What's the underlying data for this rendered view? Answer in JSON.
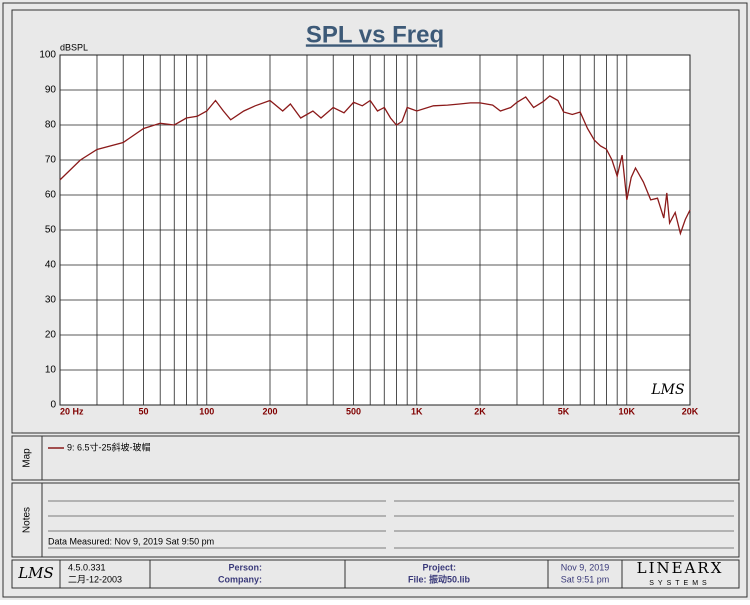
{
  "chart_data": {
    "type": "line",
    "title": "SPL vs Freq",
    "y_label": "dBSPL",
    "watermark": "LMS",
    "x_scale": "log",
    "grid": true,
    "xlim": [
      20,
      20000
    ],
    "ylim": [
      0,
      100
    ],
    "xticks": [
      {
        "value": 20,
        "label": "20 Hz"
      },
      50,
      100,
      200,
      500,
      {
        "value": 1000,
        "label": "1K"
      },
      {
        "value": 2000,
        "label": "2K"
      },
      {
        "value": 5000,
        "label": "5K"
      },
      {
        "value": 10000,
        "label": "10K"
      },
      {
        "value": 20000,
        "label": "20K"
      }
    ],
    "xgrid_minor": [
      30,
      40,
      60,
      70,
      80,
      90,
      300,
      400,
      600,
      700,
      800,
      900,
      3000,
      4000,
      6000,
      7000,
      8000,
      9000
    ],
    "yticks": [
      0,
      10,
      20,
      30,
      40,
      50,
      60,
      70,
      80,
      90,
      100
    ],
    "x": [
      20,
      25,
      30,
      40,
      50,
      60,
      70,
      80,
      90,
      100,
      110,
      120,
      130,
      150,
      170,
      200,
      230,
      250,
      280,
      320,
      350,
      400,
      450,
      500,
      550,
      600,
      650,
      700,
      750,
      800,
      850,
      900,
      1000,
      1200,
      1400,
      1600,
      1800,
      2000,
      2300,
      2500,
      2800,
      3000,
      3300,
      3600,
      4000,
      4300,
      4700,
      5000,
      5500,
      6000,
      6500,
      7000,
      7500,
      8000,
      8500,
      9000,
      9500,
      10000,
      10500,
      11000,
      12000,
      13000,
      14000,
      15000,
      15500,
      16000,
      17000,
      18000,
      19000,
      20000
    ],
    "series": [
      {
        "name": "9: 6.5寸-25斜坡-玻帽",
        "color": "#8b1a1a",
        "values": [
          64.3,
          70,
          73,
          75,
          79,
          80.5,
          80,
          82,
          82.5,
          84,
          87,
          84,
          81.5,
          84,
          85.5,
          87,
          84,
          86,
          82,
          84,
          82,
          85,
          83.5,
          86.5,
          85.5,
          87,
          84,
          85,
          82,
          80,
          81,
          85,
          84,
          85.5,
          85.7,
          86,
          86.3,
          86.3,
          85.7,
          84,
          85,
          86.5,
          88,
          85,
          86.7,
          88.3,
          87,
          83.7,
          83,
          83.7,
          79,
          75.7,
          74,
          73.1,
          70,
          65.4,
          71.4,
          58.6,
          65,
          67.7,
          63.7,
          58.6,
          59.1,
          53.4,
          60.6,
          52,
          55,
          49,
          53,
          55.7
        ]
      }
    ]
  },
  "map_panel": {
    "label": "Map"
  },
  "notes_panel": {
    "label": "Notes",
    "text": "Data Measured: Nov  9, 2019  Sat  9:50 pm"
  },
  "footer": {
    "logo": "LMS",
    "version": "4.5.0.331",
    "date": "二月-12-2003",
    "person": "Person:",
    "company": "Company:",
    "project": "Project:",
    "file": "File: 振动50.lib",
    "print_date": "Nov  9, 2019",
    "print_time": "Sat  9:51 pm",
    "brand": "LINEARX",
    "brand_sub": "SYSTEMS"
  }
}
